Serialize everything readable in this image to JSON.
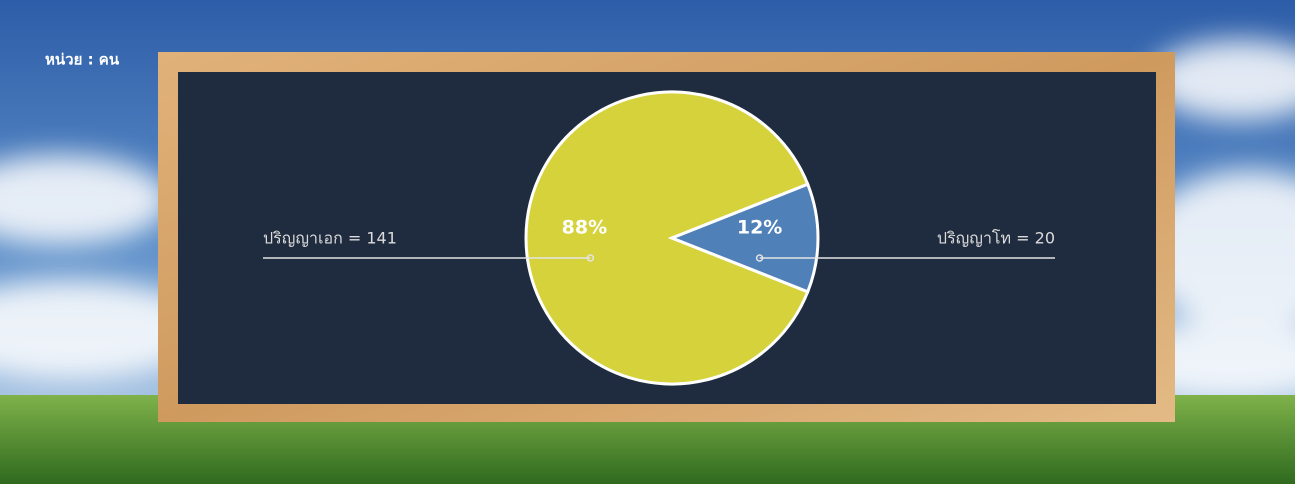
{
  "chart_data": {
    "type": "pie",
    "unit": "หน่วย : คน",
    "categories": [
      "ปริญญาเอก = 141",
      "ปริญญาโท = 20"
    ],
    "values": [
      88,
      12
    ],
    "value_labels": [
      "88%",
      "12%"
    ],
    "colors": [
      "#d6d23c",
      "#4f80b8"
    ]
  }
}
